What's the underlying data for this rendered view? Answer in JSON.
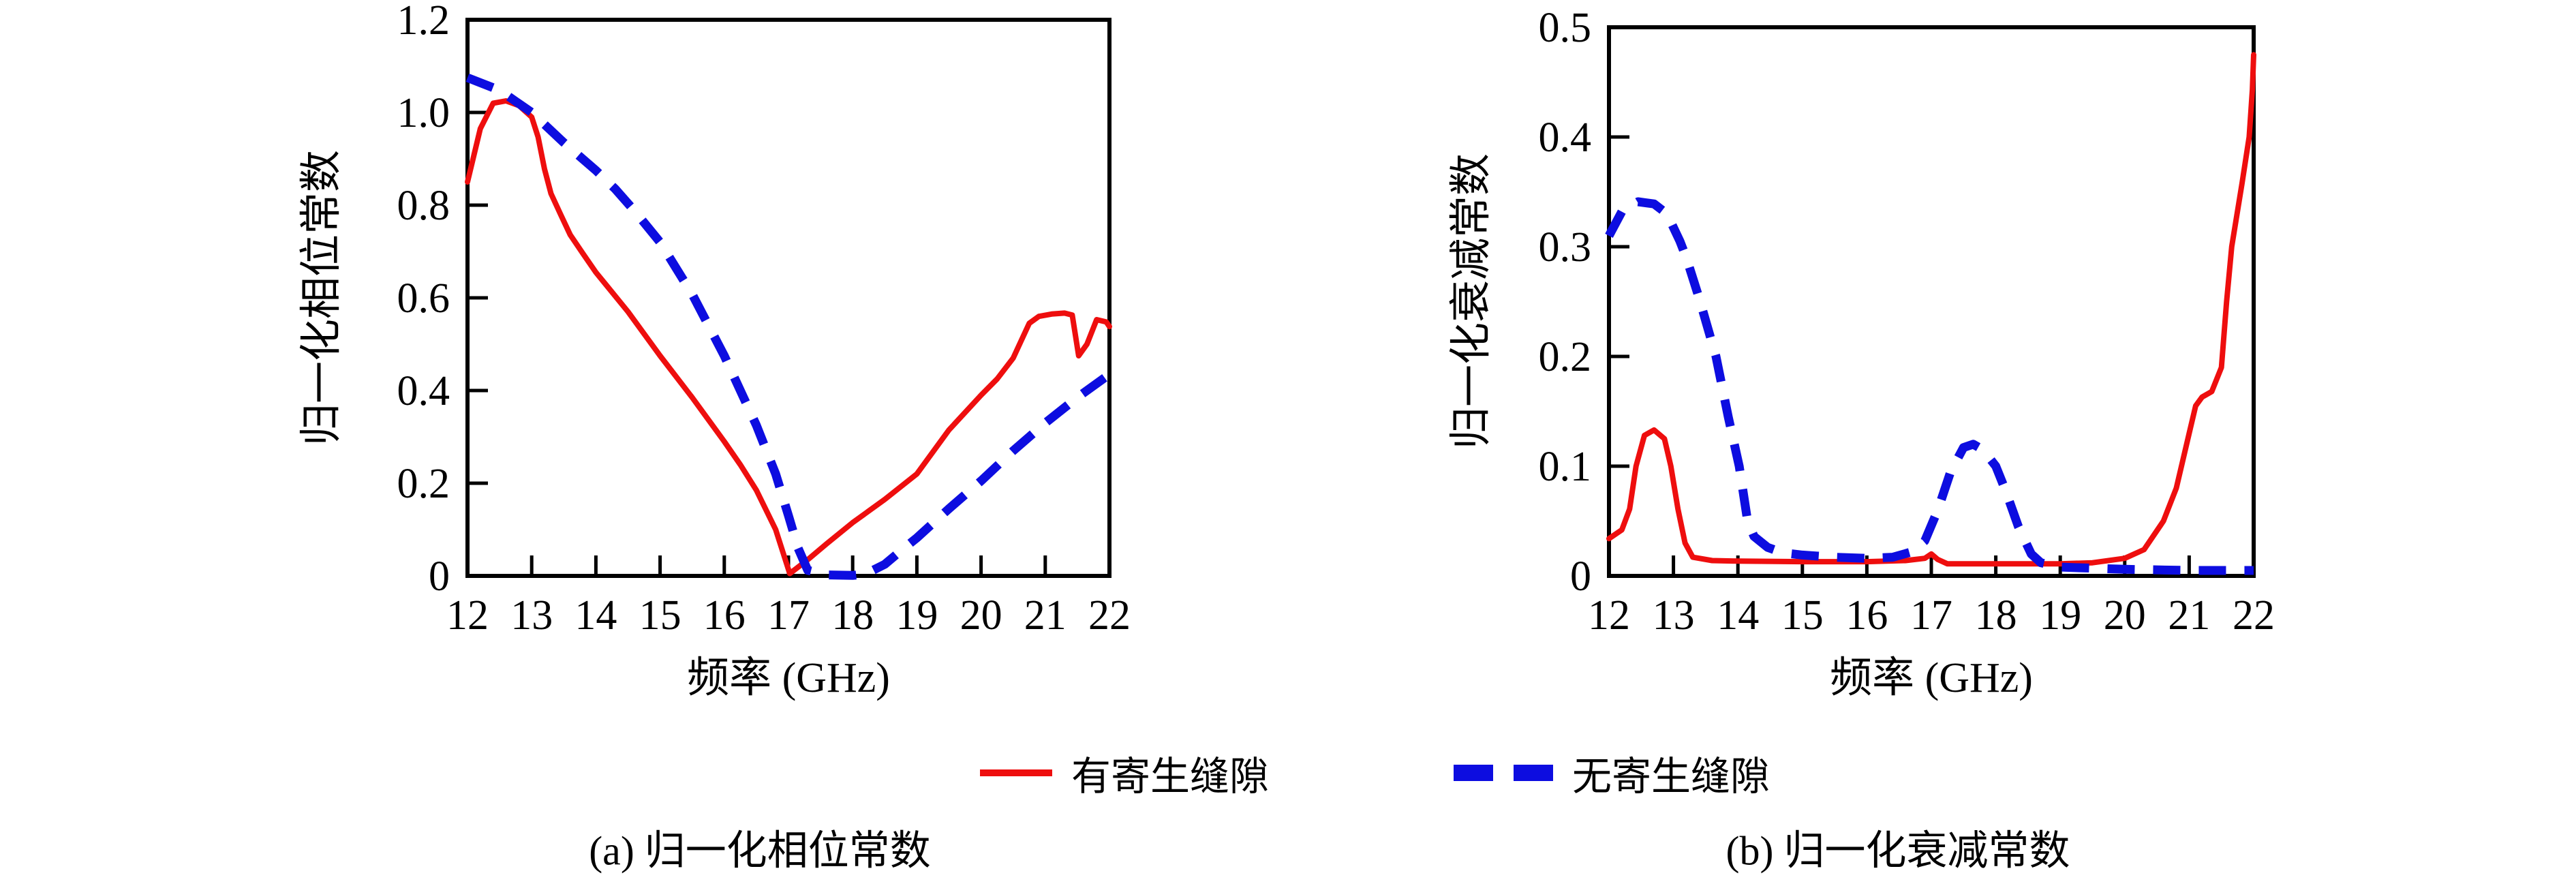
{
  "colors": {
    "with_slot": "#ee0e0e",
    "without_slot": "#0d0de0",
    "axis": "#000000",
    "background": "#ffffff"
  },
  "legend": {
    "items": [
      {
        "label": "有寄生缝隙",
        "style": "solid",
        "colorKey": "with_slot"
      },
      {
        "label": "无寄生缝隙",
        "style": "dashed",
        "colorKey": "without_slot"
      }
    ]
  },
  "captions": {
    "a": "(a) 归一化相位常数",
    "b": "(b) 归一化衰减常数"
  },
  "chart_data": [
    {
      "type": "line",
      "caption": "(a) 归一化相位常数",
      "xlabel": "频率 (GHz)",
      "ylabel": "归一化相位常数",
      "xlim": [
        12,
        22
      ],
      "ylim": [
        0,
        1.2
      ],
      "xticks": [
        "12",
        "13",
        "14",
        "15",
        "16",
        "17",
        "18",
        "19",
        "20",
        "21",
        "22"
      ],
      "yticks": [
        "0",
        "0.2",
        "0.4",
        "0.6",
        "0.8",
        "1.0",
        "1.2"
      ],
      "grid": false,
      "series": [
        {
          "name": "有寄生缝隙",
          "colorKey": "with_slot",
          "dash": false,
          "x": [
            12,
            12.2,
            12.4,
            12.6,
            12.8,
            13,
            13.1,
            13.2,
            13.3,
            13.45,
            13.6,
            13.8,
            14,
            14.5,
            15,
            15.5,
            16,
            16.25,
            16.5,
            16.8,
            17.02,
            17.3,
            17.6,
            18,
            18.5,
            19,
            19.5,
            20,
            20.25,
            20.5,
            20.75,
            20.9,
            21.1,
            21.3,
            21.42,
            21.52,
            21.65,
            21.8,
            21.95,
            22
          ],
          "y": [
            0.85,
            0.965,
            1.02,
            1.025,
            1.015,
            0.99,
            0.947,
            0.878,
            0.825,
            0.78,
            0.736,
            0.695,
            0.655,
            0.57,
            0.475,
            0.385,
            0.29,
            0.24,
            0.185,
            0.1,
            0.005,
            0.035,
            0.07,
            0.115,
            0.165,
            0.22,
            0.315,
            0.39,
            0.425,
            0.47,
            0.545,
            0.56,
            0.565,
            0.567,
            0.563,
            0.475,
            0.5,
            0.553,
            0.548,
            0.538
          ]
        },
        {
          "name": "无寄生缝隙",
          "colorKey": "without_slot",
          "dash": true,
          "x": [
            12,
            12.5,
            13,
            13.5,
            14,
            14.3,
            14.6,
            15,
            15.5,
            16,
            16.5,
            16.8,
            17,
            17.15,
            17.3,
            17.6,
            18,
            18.2,
            18.5,
            18.8,
            19,
            19.5,
            20,
            20.5,
            21,
            21.5,
            22
          ],
          "y": [
            1.075,
            1.048,
            1.0,
            0.935,
            0.875,
            0.835,
            0.788,
            0.72,
            0.608,
            0.475,
            0.325,
            0.22,
            0.13,
            0.06,
            0.012,
            0.002,
            0.001,
            0.004,
            0.025,
            0.06,
            0.082,
            0.145,
            0.205,
            0.27,
            0.33,
            0.385,
            0.435
          ]
        }
      ]
    },
    {
      "type": "line",
      "caption": "(b) 归一化衰减常数",
      "xlabel": "频率 (GHz)",
      "ylabel": "归一化衰减常数",
      "xlim": [
        12,
        22
      ],
      "ylim": [
        0,
        0.5
      ],
      "xticks": [
        "12",
        "13",
        "14",
        "15",
        "16",
        "17",
        "18",
        "19",
        "20",
        "21",
        "22"
      ],
      "yticks": [
        "0",
        "0.1",
        "0.2",
        "0.3",
        "0.4",
        "0.5"
      ],
      "grid": false,
      "series": [
        {
          "name": "有寄生缝隙",
          "colorKey": "with_slot",
          "dash": false,
          "x": [
            12,
            12.2,
            12.32,
            12.42,
            12.55,
            12.7,
            12.86,
            12.96,
            13.07,
            13.18,
            13.3,
            13.6,
            14,
            15,
            16,
            16.6,
            16.9,
            17,
            17.1,
            17.25,
            17.5,
            18,
            18.5,
            19,
            19.5,
            20,
            20.3,
            20.6,
            20.8,
            21,
            21.1,
            21.2,
            21.35,
            21.5,
            21.58,
            21.66,
            21.82,
            21.93,
            21.98,
            22
          ],
          "y": [
            0.034,
            0.042,
            0.061,
            0.1,
            0.128,
            0.133,
            0.125,
            0.1,
            0.061,
            0.03,
            0.017,
            0.014,
            0.0135,
            0.013,
            0.013,
            0.014,
            0.016,
            0.02,
            0.015,
            0.011,
            0.011,
            0.011,
            0.011,
            0.011,
            0.012,
            0.016,
            0.024,
            0.05,
            0.08,
            0.13,
            0.155,
            0.163,
            0.168,
            0.19,
            0.25,
            0.3,
            0.358,
            0.4,
            0.443,
            0.475
          ]
        },
        {
          "name": "无寄生缝隙",
          "colorKey": "without_slot",
          "dash": true,
          "x": [
            12,
            12.2,
            12.45,
            12.7,
            12.9,
            13.1,
            13.2,
            13.4,
            13.66,
            13.85,
            14.02,
            14.15,
            14.25,
            14.46,
            14.7,
            15,
            15.5,
            16,
            16.4,
            16.7,
            16.9,
            17.1,
            17.3,
            17.5,
            17.65,
            17.8,
            18,
            18.15,
            18.35,
            18.55,
            18.7,
            19,
            19.5,
            20,
            21,
            22
          ],
          "y": [
            0.31,
            0.332,
            0.341,
            0.339,
            0.33,
            0.305,
            0.29,
            0.253,
            0.2,
            0.145,
            0.1,
            0.05,
            0.036,
            0.026,
            0.021,
            0.019,
            0.017,
            0.016,
            0.017,
            0.022,
            0.032,
            0.06,
            0.095,
            0.117,
            0.12,
            0.115,
            0.1,
            0.078,
            0.045,
            0.02,
            0.012,
            0.008,
            0.007,
            0.006,
            0.005,
            0.005
          ]
        }
      ]
    }
  ]
}
